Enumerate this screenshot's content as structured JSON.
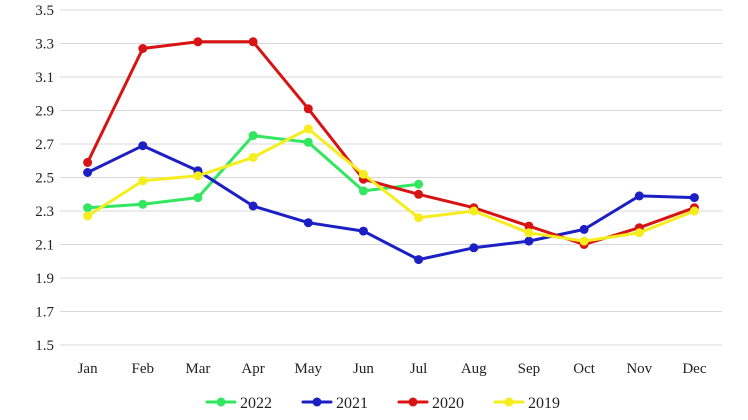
{
  "chart_data": {
    "type": "line",
    "title": "",
    "xlabel": "",
    "ylabel": "",
    "categories": [
      "Jan",
      "Feb",
      "Mar",
      "Apr",
      "May",
      "Jun",
      "Jul",
      "Aug",
      "Sep",
      "Oct",
      "Nov",
      "Dec"
    ],
    "ylim": [
      1.5,
      3.5
    ],
    "yticks": [
      "1.5",
      "1.7",
      "1.9",
      "2.1",
      "2.3",
      "2.5",
      "2.7",
      "2.9",
      "3.1",
      "3.3",
      "3.5"
    ],
    "grid": "horizontal",
    "legend_position": "bottom",
    "series": [
      {
        "name": "2022",
        "color": "#33e660",
        "values": [
          2.32,
          2.34,
          2.38,
          2.75,
          2.71,
          2.42,
          2.46,
          null,
          null,
          null,
          null,
          null
        ]
      },
      {
        "name": "2021",
        "color": "#1c1fc4",
        "values": [
          2.53,
          2.69,
          2.54,
          2.33,
          2.23,
          2.18,
          2.01,
          2.08,
          2.12,
          2.19,
          2.39,
          2.38
        ]
      },
      {
        "name": "2020",
        "color": "#d81313",
        "values": [
          2.59,
          3.27,
          3.31,
          3.31,
          2.91,
          2.49,
          2.4,
          2.32,
          2.21,
          2.1,
          2.2,
          2.32
        ]
      },
      {
        "name": "2019",
        "color": "#f5ed1e",
        "values": [
          2.27,
          2.48,
          2.51,
          2.62,
          2.79,
          2.52,
          2.26,
          2.3,
          2.17,
          2.12,
          2.17,
          2.3
        ]
      }
    ]
  }
}
